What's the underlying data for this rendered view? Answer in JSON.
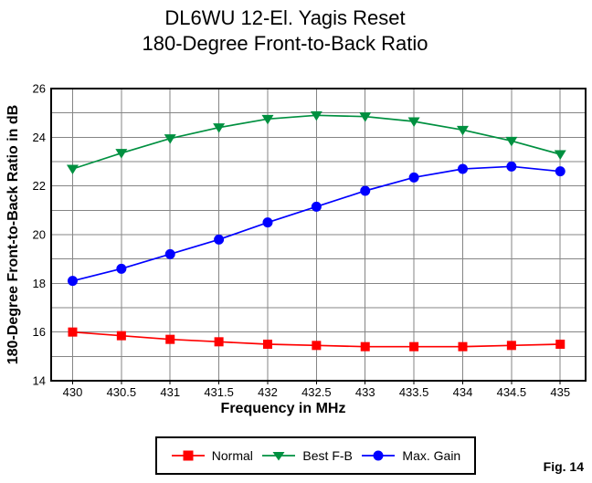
{
  "page": {
    "title_line1": "DL6WU 12-El. Yagis Reset",
    "title_line2": "180-Degree Front-to-Back Ratio",
    "fig_label": "Fig. 14"
  },
  "chart_data": {
    "type": "line",
    "title": "DL6WU 12-El. Yagis Reset",
    "subtitle": "180-Degree Front-to-Back Ratio",
    "xlabel": "Frequency in MHz",
    "ylabel": "180-Degree Front-to-Back Ratio in dB",
    "x": [
      430,
      430.5,
      431,
      431.5,
      432,
      432.5,
      433,
      433.5,
      434,
      434.5,
      435
    ],
    "x_tick_labels": [
      "430",
      "430.5",
      "431",
      "431.5",
      "432",
      "432.5",
      "433",
      "433.5",
      "434",
      "434.5",
      "435"
    ],
    "y_major_ticks": [
      14,
      16,
      18,
      20,
      22,
      24,
      26
    ],
    "y_grid_step": 1,
    "xlim": [
      429.78,
      435.26
    ],
    "ylim": [
      14,
      26
    ],
    "grid": true,
    "legend_position": "bottom",
    "series": [
      {
        "name": "Normal",
        "marker": "square",
        "color": "#ff0000",
        "values": [
          16.0,
          15.85,
          15.7,
          15.6,
          15.5,
          15.45,
          15.4,
          15.4,
          15.4,
          15.45,
          15.5
        ]
      },
      {
        "name": "Best F-B",
        "marker": "triangle-down",
        "color": "#009040",
        "values": [
          22.7,
          23.35,
          23.95,
          24.4,
          24.75,
          24.9,
          24.85,
          24.65,
          24.3,
          23.85,
          23.3
        ]
      },
      {
        "name": "Max. Gain",
        "marker": "circle",
        "color": "#0000ff",
        "values": [
          18.1,
          18.6,
          19.2,
          19.8,
          20.5,
          21.15,
          21.8,
          22.35,
          22.7,
          22.8,
          22.6
        ]
      }
    ],
    "grid_color": "#858585",
    "axis_color": "#000000",
    "background_color": "#ffffff"
  }
}
